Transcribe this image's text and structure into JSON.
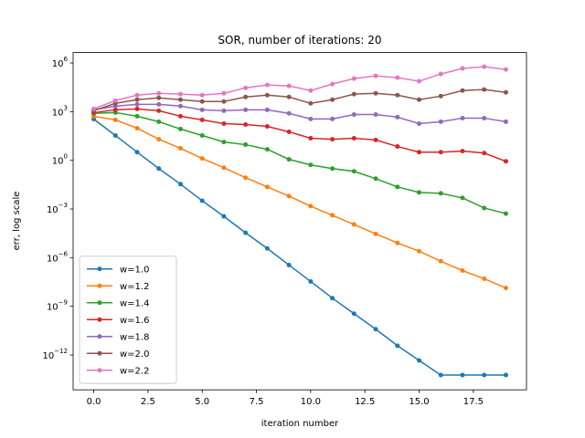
{
  "chart_data": {
    "type": "line",
    "title": "SOR, number of iterations: 20",
    "x_label": "iteration number",
    "y_label": "err, log scale",
    "log_y": true,
    "legend": "lower left",
    "marker": true,
    "x": [
      0,
      1,
      2,
      3,
      4,
      5,
      6,
      7,
      8,
      9,
      10,
      11,
      12,
      13,
      14,
      15,
      16,
      17,
      18,
      19
    ],
    "xlim": [
      -0.95,
      19.95
    ],
    "xticks": [
      {
        "value": 0,
        "label": "0.0"
      },
      2.5,
      {
        "value": 5,
        "label": "5.0"
      },
      7.5,
      {
        "value": 10,
        "label": "10.0"
      },
      12.5,
      {
        "value": 15,
        "label": "15.0"
      },
      17.5
    ],
    "ylim": [
      7.1e-15,
      4400000.0
    ],
    "yticks": [
      {
        "value": 1e-12,
        "label": "10",
        "sup": "−12"
      },
      {
        "value": 1e-09,
        "label": "10",
        "sup": "−9"
      },
      {
        "value": 1e-06,
        "label": "10",
        "sup": "−6"
      },
      {
        "value": 0.001,
        "label": "10",
        "sup": "−3"
      },
      {
        "value": 1,
        "label": "10",
        "sup": "0"
      },
      {
        "value": 1000.0,
        "label": "10",
        "sup": "3"
      },
      {
        "value": 1000000.0,
        "label": "10",
        "sup": "6"
      }
    ],
    "series": [
      {
        "name": "w=1.0",
        "color": "#1f77b4",
        "values": [
          350,
          34,
          3.2,
          0.31,
          0.034,
          0.0032,
          0.00035,
          3.4e-05,
          3.7e-06,
          3.5e-07,
          3.4e-08,
          3.2e-09,
          3.5e-10,
          3.9e-11,
          3.7e-12,
          4.6e-13,
          5.8e-14,
          5.8e-14,
          5.8e-14,
          5.8e-14
        ]
      },
      {
        "name": "w=1.2",
        "color": "#ff7f0e",
        "values": [
          525,
          310,
          96,
          20,
          5.5,
          1.3,
          0.35,
          0.085,
          0.023,
          0.0062,
          0.0015,
          0.00041,
          0.00011,
          2.9e-05,
          8.1e-06,
          2.5e-06,
          6e-07,
          1.6e-07,
          5e-08,
          1.35e-08
        ]
      },
      {
        "name": "w=1.4",
        "color": "#2ca02c",
        "values": [
          780,
          880,
          525,
          240,
          85,
          34,
          13.5,
          9.2,
          4.8,
          1.15,
          0.52,
          0.31,
          0.21,
          0.074,
          0.023,
          0.0105,
          0.0092,
          0.0048,
          0.00115,
          0.00052
        ]
      },
      {
        "name": "w=1.6",
        "color": "#d62728",
        "values": [
          870,
          1300,
          1480,
          1140,
          525,
          310,
          183,
          160,
          124,
          57,
          23,
          20,
          23,
          18,
          7.1,
          3.2,
          3.2,
          3.7,
          2.8,
          0.87
        ]
      },
      {
        "name": "w=1.8",
        "color": "#9467bd",
        "values": [
          1300,
          2200,
          2800,
          2800,
          2200,
          1300,
          1140,
          1300,
          1300,
          780,
          355,
          355,
          670,
          670,
          460,
          183,
          240,
          400,
          400,
          240
        ]
      },
      {
        "name": "w=2.0",
        "color": "#8c564b",
        "values": [
          1140,
          3240,
          5500,
          7100,
          5500,
          4200,
          4200,
          8100,
          10500,
          8100,
          3240,
          5500,
          12000,
          13500,
          10500,
          5500,
          9100,
          20000,
          23000,
          15500
        ]
      },
      {
        "name": "w=2.2",
        "color": "#e377c2",
        "values": [
          1480,
          4800,
          10500,
          13500,
          12000,
          10500,
          13500,
          29500,
          44000,
          39000,
          20000,
          50000,
          110000,
          160000,
          124000,
          75000,
          210000,
          460000,
          590000,
          400000
        ]
      }
    ]
  }
}
